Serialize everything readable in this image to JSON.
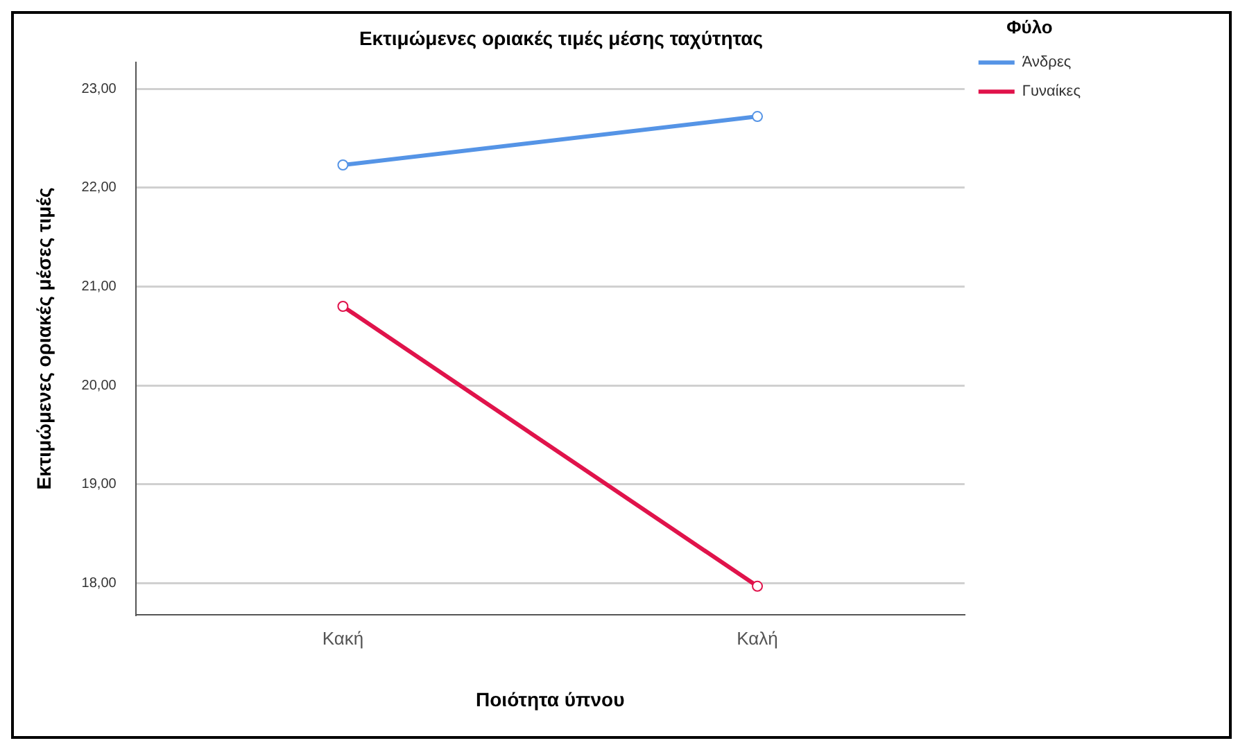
{
  "chart_data": {
    "type": "line",
    "title": "Εκτιμώμενες οριακές τιμές μέσης ταχύτητας",
    "xlabel": "Ποιότητα ύπνου",
    "ylabel": "Εκτιμώμενες οριακές μέσες τιμές",
    "legend_title": "Φύλο",
    "categories": [
      "Κακή",
      "Καλή"
    ],
    "series": [
      {
        "name": "Άνδρες",
        "color": "#5594e6",
        "values": [
          22.23,
          22.72
        ]
      },
      {
        "name": "Γυναίκες",
        "color": "#e0134b",
        "values": [
          20.8,
          17.97
        ]
      }
    ],
    "ylim": [
      17.68,
      23.27
    ],
    "yticks": [
      {
        "value": 18,
        "label": "18,00"
      },
      {
        "value": 19,
        "label": "19,00"
      },
      {
        "value": 20,
        "label": "20,00"
      },
      {
        "value": 21,
        "label": "21,00"
      },
      {
        "value": 22,
        "label": "22,00"
      },
      {
        "value": 23,
        "label": "23,00"
      }
    ],
    "grid": "y",
    "legend": "top right",
    "marker": "circle",
    "line_style": "solid"
  }
}
